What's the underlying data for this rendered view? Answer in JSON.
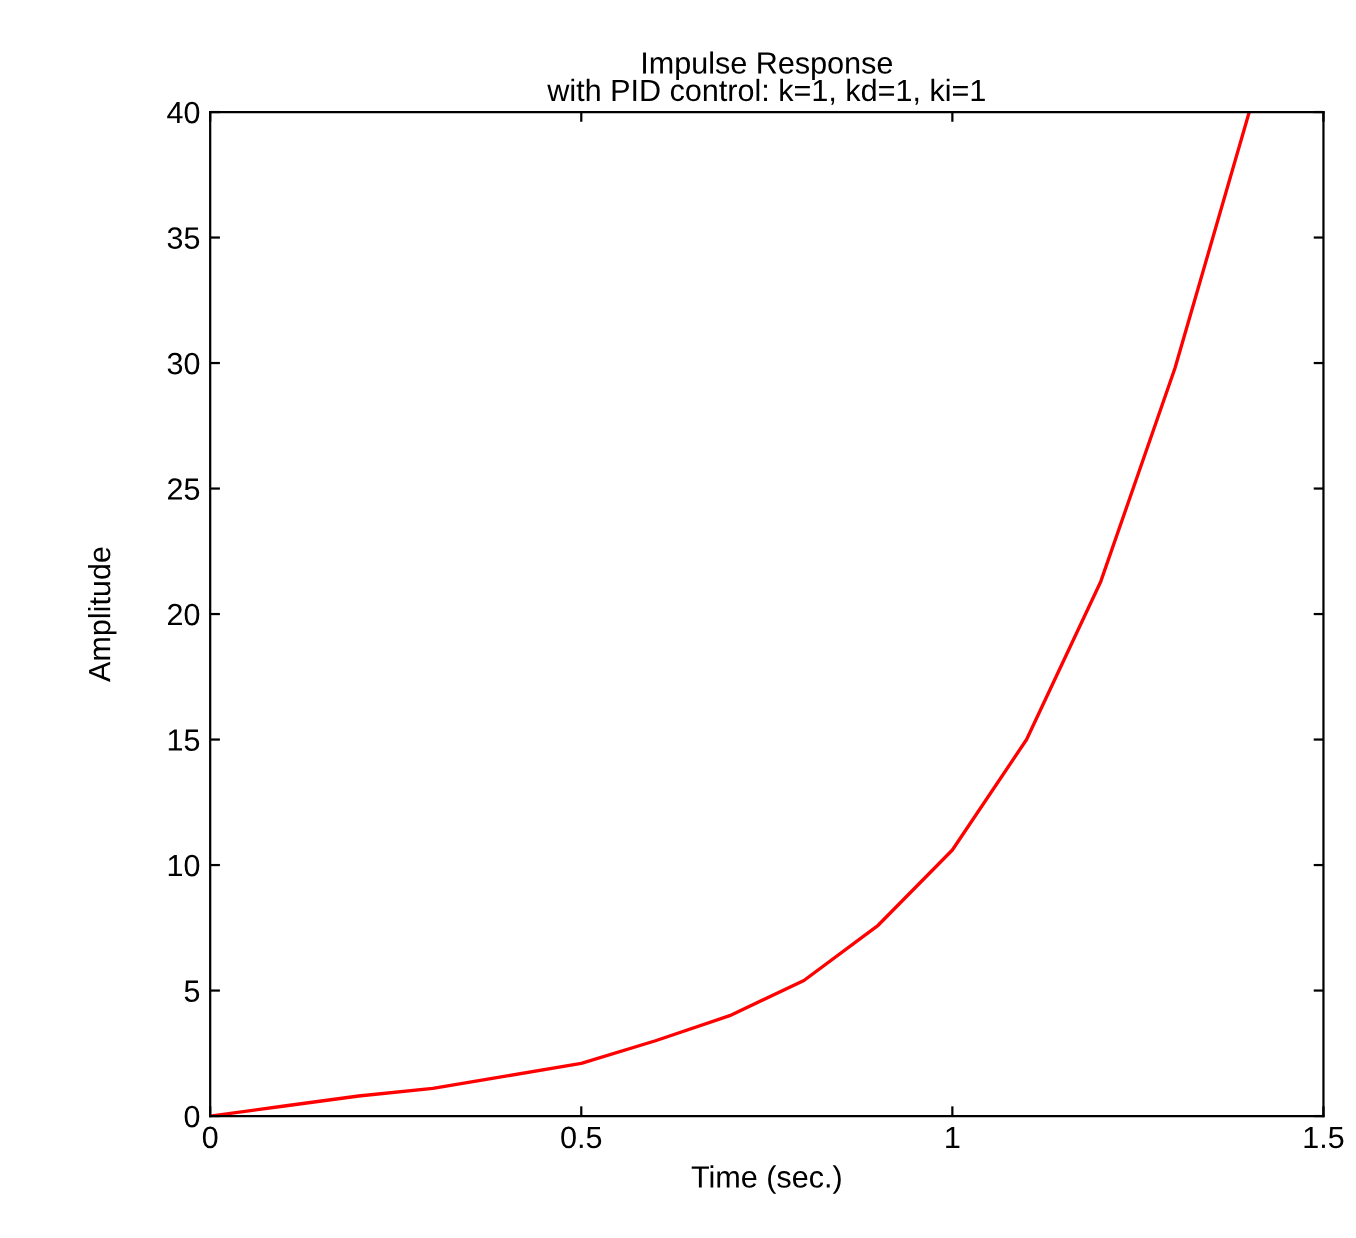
{
  "chart_data": {
    "type": "line",
    "title": "Impulse Response",
    "subtitle": "with PID control: k=1, kd=1, ki=1",
    "xlabel": "Time (sec.)",
    "ylabel": "Amplitude",
    "series": [
      {
        "color": "#ff0000",
        "x": [
          0,
          0.1,
          0.2,
          0.3,
          0.4,
          0.5,
          0.6,
          0.7,
          0.8,
          0.9,
          1.0,
          1.1,
          1.2,
          1.3,
          1.4
        ],
        "values": [
          0,
          0.4,
          0.8,
          1.1,
          1.6,
          2.1,
          3.0,
          4.0,
          5.4,
          7.6,
          10.6,
          15.0,
          21.3,
          29.8,
          40
        ]
      }
    ],
    "xlim": [
      0,
      1.5
    ],
    "ylim": [
      0,
      40
    ],
    "xticks": [
      0,
      0.5,
      1,
      1.5
    ],
    "yticks": [
      0,
      5,
      10,
      15,
      20,
      25,
      30,
      35,
      40
    ],
    "grid": false,
    "legend": false,
    "line_style": "solid",
    "marker": "none"
  }
}
